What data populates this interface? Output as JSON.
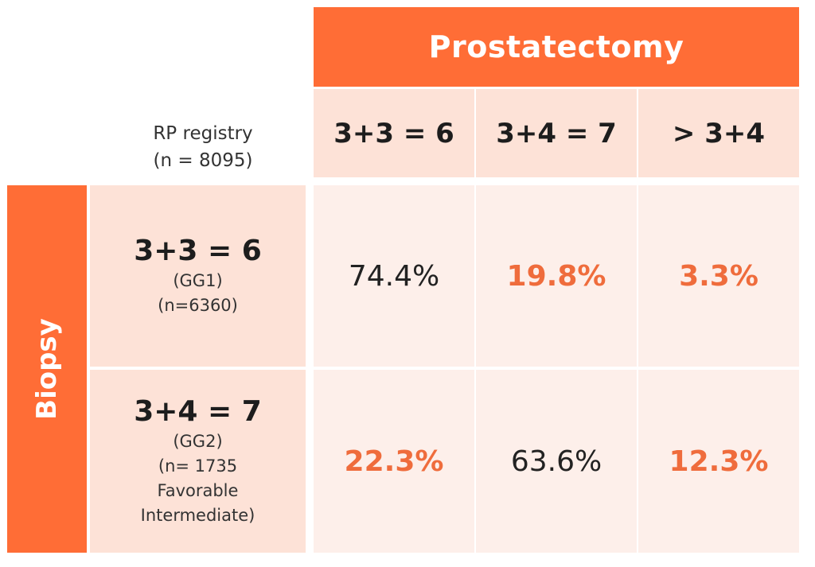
{
  "colors": {
    "accent": "#ff6d36",
    "header_tint": "#fde2d7",
    "cell_tint": "#fdefea",
    "highlight_text": "#ef6c3c"
  },
  "chart_data": {
    "type": "table",
    "column_group_title": "Prostatectomy",
    "row_group_title": "Biopsy",
    "corner_label_line1": "RP registry",
    "corner_label_line2": "(n = 8095)",
    "columns": [
      "3+3 = 6",
      "3+4 = 7",
      "> 3+4"
    ],
    "rows": [
      {
        "grade": "3+3 = 6",
        "group": "(GG1)",
        "count_lines": [
          "(n=6360)"
        ],
        "values": [
          "74.4%",
          "19.8%",
          "3.3%"
        ],
        "highlighted": [
          false,
          true,
          true
        ]
      },
      {
        "grade": "3+4 = 7",
        "group": "(GG2)",
        "count_lines": [
          "(n= 1735",
          "Favorable",
          "Intermediate)"
        ],
        "values": [
          "22.3%",
          "63.6%",
          "12.3%"
        ],
        "highlighted": [
          true,
          false,
          true
        ]
      }
    ]
  }
}
